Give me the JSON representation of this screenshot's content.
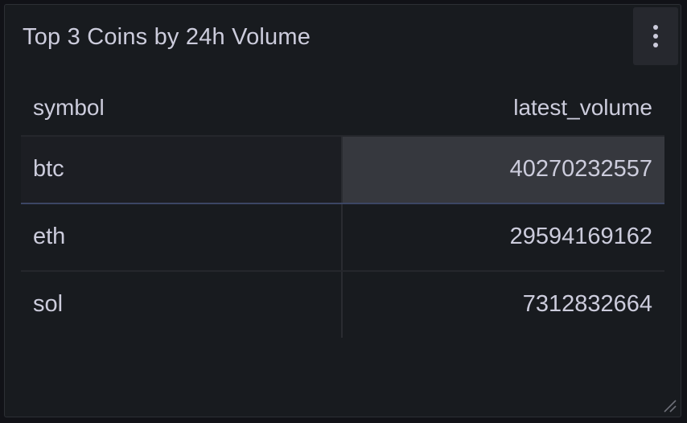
{
  "panel": {
    "title": "Top 3 Coins by 24h Volume",
    "menu_icon": "vertical-ellipsis-icon"
  },
  "table": {
    "columns": [
      "symbol",
      "latest_volume"
    ],
    "rows": [
      {
        "symbol": "btc",
        "latest_volume": "40270232557"
      },
      {
        "symbol": "eth",
        "latest_volume": "29594169162"
      },
      {
        "symbol": "sol",
        "latest_volume": "7312832664"
      }
    ]
  },
  "colors": {
    "background": "#111217",
    "panel": "#181b1f",
    "text": "#ccccdc",
    "hover_cell": "#36383e"
  }
}
